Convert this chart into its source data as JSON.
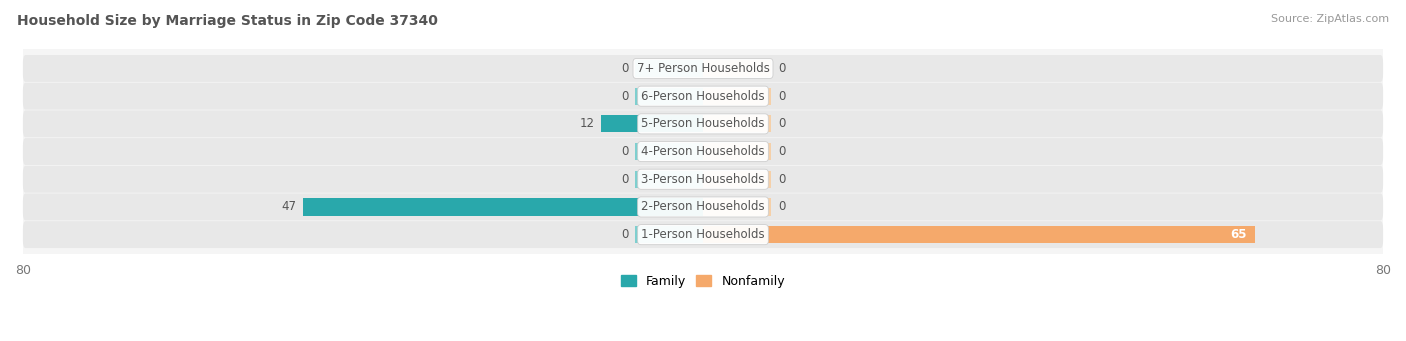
{
  "title": "Household Size by Marriage Status in Zip Code 37340",
  "source": "Source: ZipAtlas.com",
  "categories": [
    "1-Person Households",
    "2-Person Households",
    "3-Person Households",
    "4-Person Households",
    "5-Person Households",
    "6-Person Households",
    "7+ Person Households"
  ],
  "family_values": [
    0,
    47,
    0,
    0,
    12,
    0,
    0
  ],
  "nonfamily_values": [
    65,
    0,
    0,
    0,
    0,
    0,
    0
  ],
  "family_color": "#29A8AB",
  "family_stub_color": "#7ECFCF",
  "nonfamily_color": "#F5A96B",
  "nonfamily_stub_color": "#F5D0A9",
  "stub_size": 8,
  "xlim": 80,
  "bar_height": 0.62,
  "row_bg_color": "#e8e8e8",
  "row_gap_color": "#f5f5f5",
  "label_color": "#555555",
  "title_color": "#555555",
  "source_color": "#999999",
  "legend_family": "Family",
  "legend_nonfamily": "Nonfamily"
}
